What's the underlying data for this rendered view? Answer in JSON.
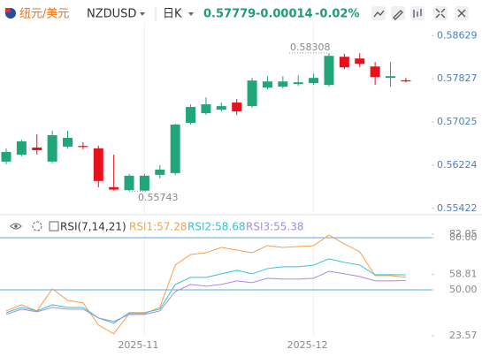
{
  "header": {
    "pair_name": "纽元/美元",
    "symbol": "NZDUSD",
    "period": "日K",
    "last": "0.57779",
    "change": "-0.00014",
    "change_pct": "-0.02%"
  },
  "chart_data": [
    {
      "type": "candlestick",
      "categories": [
        null,
        null,
        null,
        null,
        null,
        null,
        null,
        null,
        null,
        "2025-11",
        null,
        null,
        null,
        null,
        null,
        null,
        null,
        null,
        null,
        null,
        "2025-12",
        null,
        null,
        null,
        null,
        null,
        null
      ],
      "open": [
        0.5629,
        0.5642,
        0.56551,
        0.5629,
        0.56568,
        0.5658,
        0.56535,
        0.55815,
        0.5576,
        0.55752,
        0.56044,
        0.56077,
        0.57009,
        0.57189,
        0.57255,
        0.57386,
        0.5732,
        0.57664,
        0.5768,
        0.57729,
        0.57746,
        0.57713,
        0.58236,
        0.58204,
        0.58056,
        0.57844,
        0.578
      ],
      "high": [
        0.56535,
        0.56699,
        0.56797,
        0.56862,
        0.56862,
        0.5665,
        0.56584,
        0.5642,
        0.5606,
        0.5606,
        0.56224,
        0.56993,
        0.57353,
        0.57484,
        0.57386,
        0.57451,
        0.57844,
        0.57876,
        0.57876,
        0.57893,
        0.57926,
        0.58308,
        0.5829,
        0.58302,
        0.58138,
        0.58138,
        0.5784
      ],
      "low": [
        0.5624,
        0.56388,
        0.5642,
        0.56257,
        0.56535,
        0.5652,
        0.55815,
        0.55755,
        0.55743,
        0.55745,
        0.55979,
        0.56044,
        0.56977,
        0.57157,
        0.57222,
        0.57157,
        0.57287,
        0.57631,
        0.57647,
        0.57696,
        0.57713,
        0.5768,
        0.58007,
        0.5804,
        0.57713,
        0.5768,
        0.5776
      ],
      "close": [
        0.56469,
        0.56666,
        0.56502,
        0.5678,
        0.56731,
        0.5656,
        0.5593,
        0.5577,
        0.56028,
        0.56028,
        0.56142,
        0.56977,
        0.57304,
        0.57353,
        0.5732,
        0.57222,
        0.57795,
        0.57778,
        0.57778,
        0.57762,
        0.57844,
        0.58253,
        0.5804,
        0.58105,
        0.5786,
        0.57876,
        0.57779
      ],
      "up_color": "#21a57a",
      "down_color": "#e8101a",
      "ylim": [
        0.5532,
        0.5888
      ],
      "yticks": [
        0.58629,
        0.57827,
        0.57025,
        0.56224,
        0.55422
      ],
      "high_mark": 21,
      "low_mark": 8
    },
    {
      "type": "line",
      "title": "RSI(7,14,21)",
      "categories": [
        null,
        null,
        null,
        null,
        null,
        null,
        null,
        null,
        null,
        "2025-11",
        null,
        null,
        null,
        null,
        null,
        null,
        null,
        null,
        null,
        null,
        "2025-12",
        null,
        null,
        null,
        null,
        null,
        null
      ],
      "series": [
        {
          "name": "RSI1:57.28",
          "color": "#f5a04a",
          "values": [
            37.89,
            41.44,
            37.89,
            50.58,
            43.98,
            42.46,
            29.77,
            24.69,
            36.36,
            36.36,
            39.92,
            64.28,
            70.37,
            71.39,
            74.44,
            72.91,
            71.39,
            75.45,
            74.44,
            74.94,
            75.45,
            81.54,
            76.47,
            71.9,
            58.19,
            58.19,
            57.28
          ]
        },
        {
          "name": "RSI2:58.68",
          "color": "#33c3cf",
          "values": [
            36.87,
            39.92,
            37.89,
            41.44,
            39.92,
            39.92,
            33.83,
            30.78,
            36.87,
            36.87,
            38.9,
            53.12,
            57.18,
            57.18,
            59.21,
            61.24,
            59.21,
            62.25,
            63.27,
            63.27,
            64.28,
            67.84,
            65.81,
            64.28,
            58.7,
            58.7,
            58.68
          ]
        },
        {
          "name": "RSI3:55.38",
          "color": "#a68de0",
          "values": [
            35.86,
            38.9,
            37.38,
            39.92,
            38.9,
            38.9,
            33.83,
            31.8,
            35.86,
            35.86,
            37.89,
            49.06,
            53.12,
            52.1,
            53.12,
            55.15,
            54.13,
            56.67,
            56.16,
            56.16,
            56.67,
            60.73,
            59.21,
            57.68,
            55.15,
            55.15,
            55.38
          ]
        }
      ],
      "ylim": [
        23.57,
        82.05
      ],
      "yticks": [
        82.05,
        {
          "value": 80,
          "label": "80.00"
        },
        58.81,
        {
          "value": 50,
          "label": "50.00"
        },
        23.57
      ],
      "hlines": [
        80,
        50
      ],
      "hline_color": "#5aa8ee"
    }
  ]
}
